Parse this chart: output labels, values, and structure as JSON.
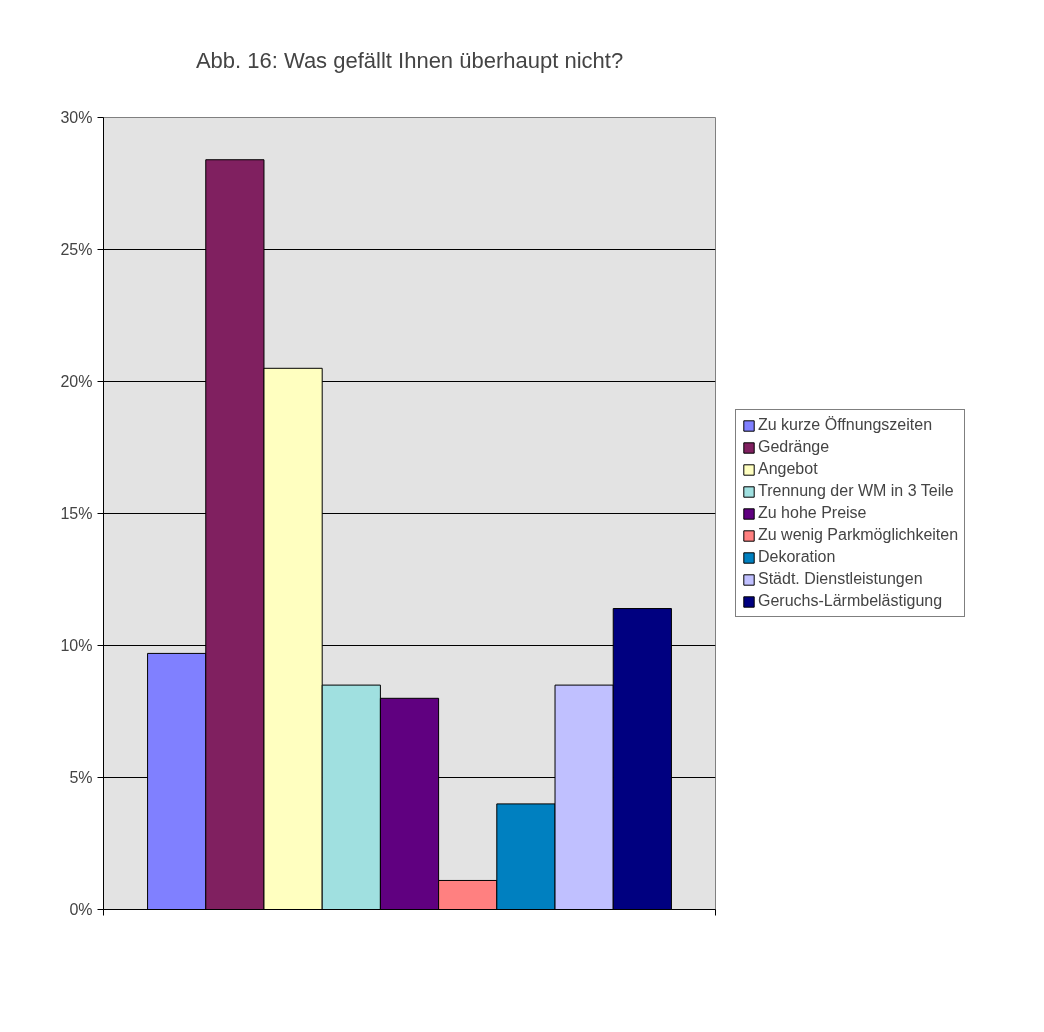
{
  "chart_data": {
    "type": "bar",
    "title": "Abb. 16: Was gefällt Ihnen überhaupt nicht?",
    "categories": [
      null
    ],
    "series": [
      {
        "name": "Zu kurze Öffnungszeiten",
        "color": "#8080ff",
        "values": [
          9.7
        ]
      },
      {
        "name": "Gedränge",
        "color": "#802060",
        "values": [
          28.4
        ]
      },
      {
        "name": "Angebot",
        "color": "#ffffc0",
        "values": [
          20.5
        ]
      },
      {
        "name": "Trennung der WM in 3 Teile",
        "color": "#a0e0e0",
        "values": [
          8.5
        ]
      },
      {
        "name": "Zu hohe Preise",
        "color": "#600080",
        "values": [
          8.0
        ]
      },
      {
        "name": "Zu wenig Parkmöglichkeiten",
        "color": "#ff8080",
        "values": [
          1.1
        ]
      },
      {
        "name": "Dekoration",
        "color": "#0080c0",
        "values": [
          4.0
        ]
      },
      {
        "name": "Städt. Dienstleistungen",
        "color": "#c0c0ff",
        "values": [
          8.5
        ]
      },
      {
        "name": "Geruchs-Lärmbelästigung",
        "color": "#000080",
        "values": [
          11.4
        ]
      }
    ],
    "ylim": [
      0,
      30
    ],
    "yticks": [
      {
        "value": 0,
        "label": "0%"
      },
      {
        "value": 5,
        "label": "5%"
      },
      {
        "value": 10,
        "label": "10%"
      },
      {
        "value": 15,
        "label": "15%"
      },
      {
        "value": 20,
        "label": "20%"
      },
      {
        "value": 25,
        "label": "25%"
      },
      {
        "value": 30,
        "label": "30%"
      }
    ],
    "grid": "y",
    "legend": "right"
  }
}
